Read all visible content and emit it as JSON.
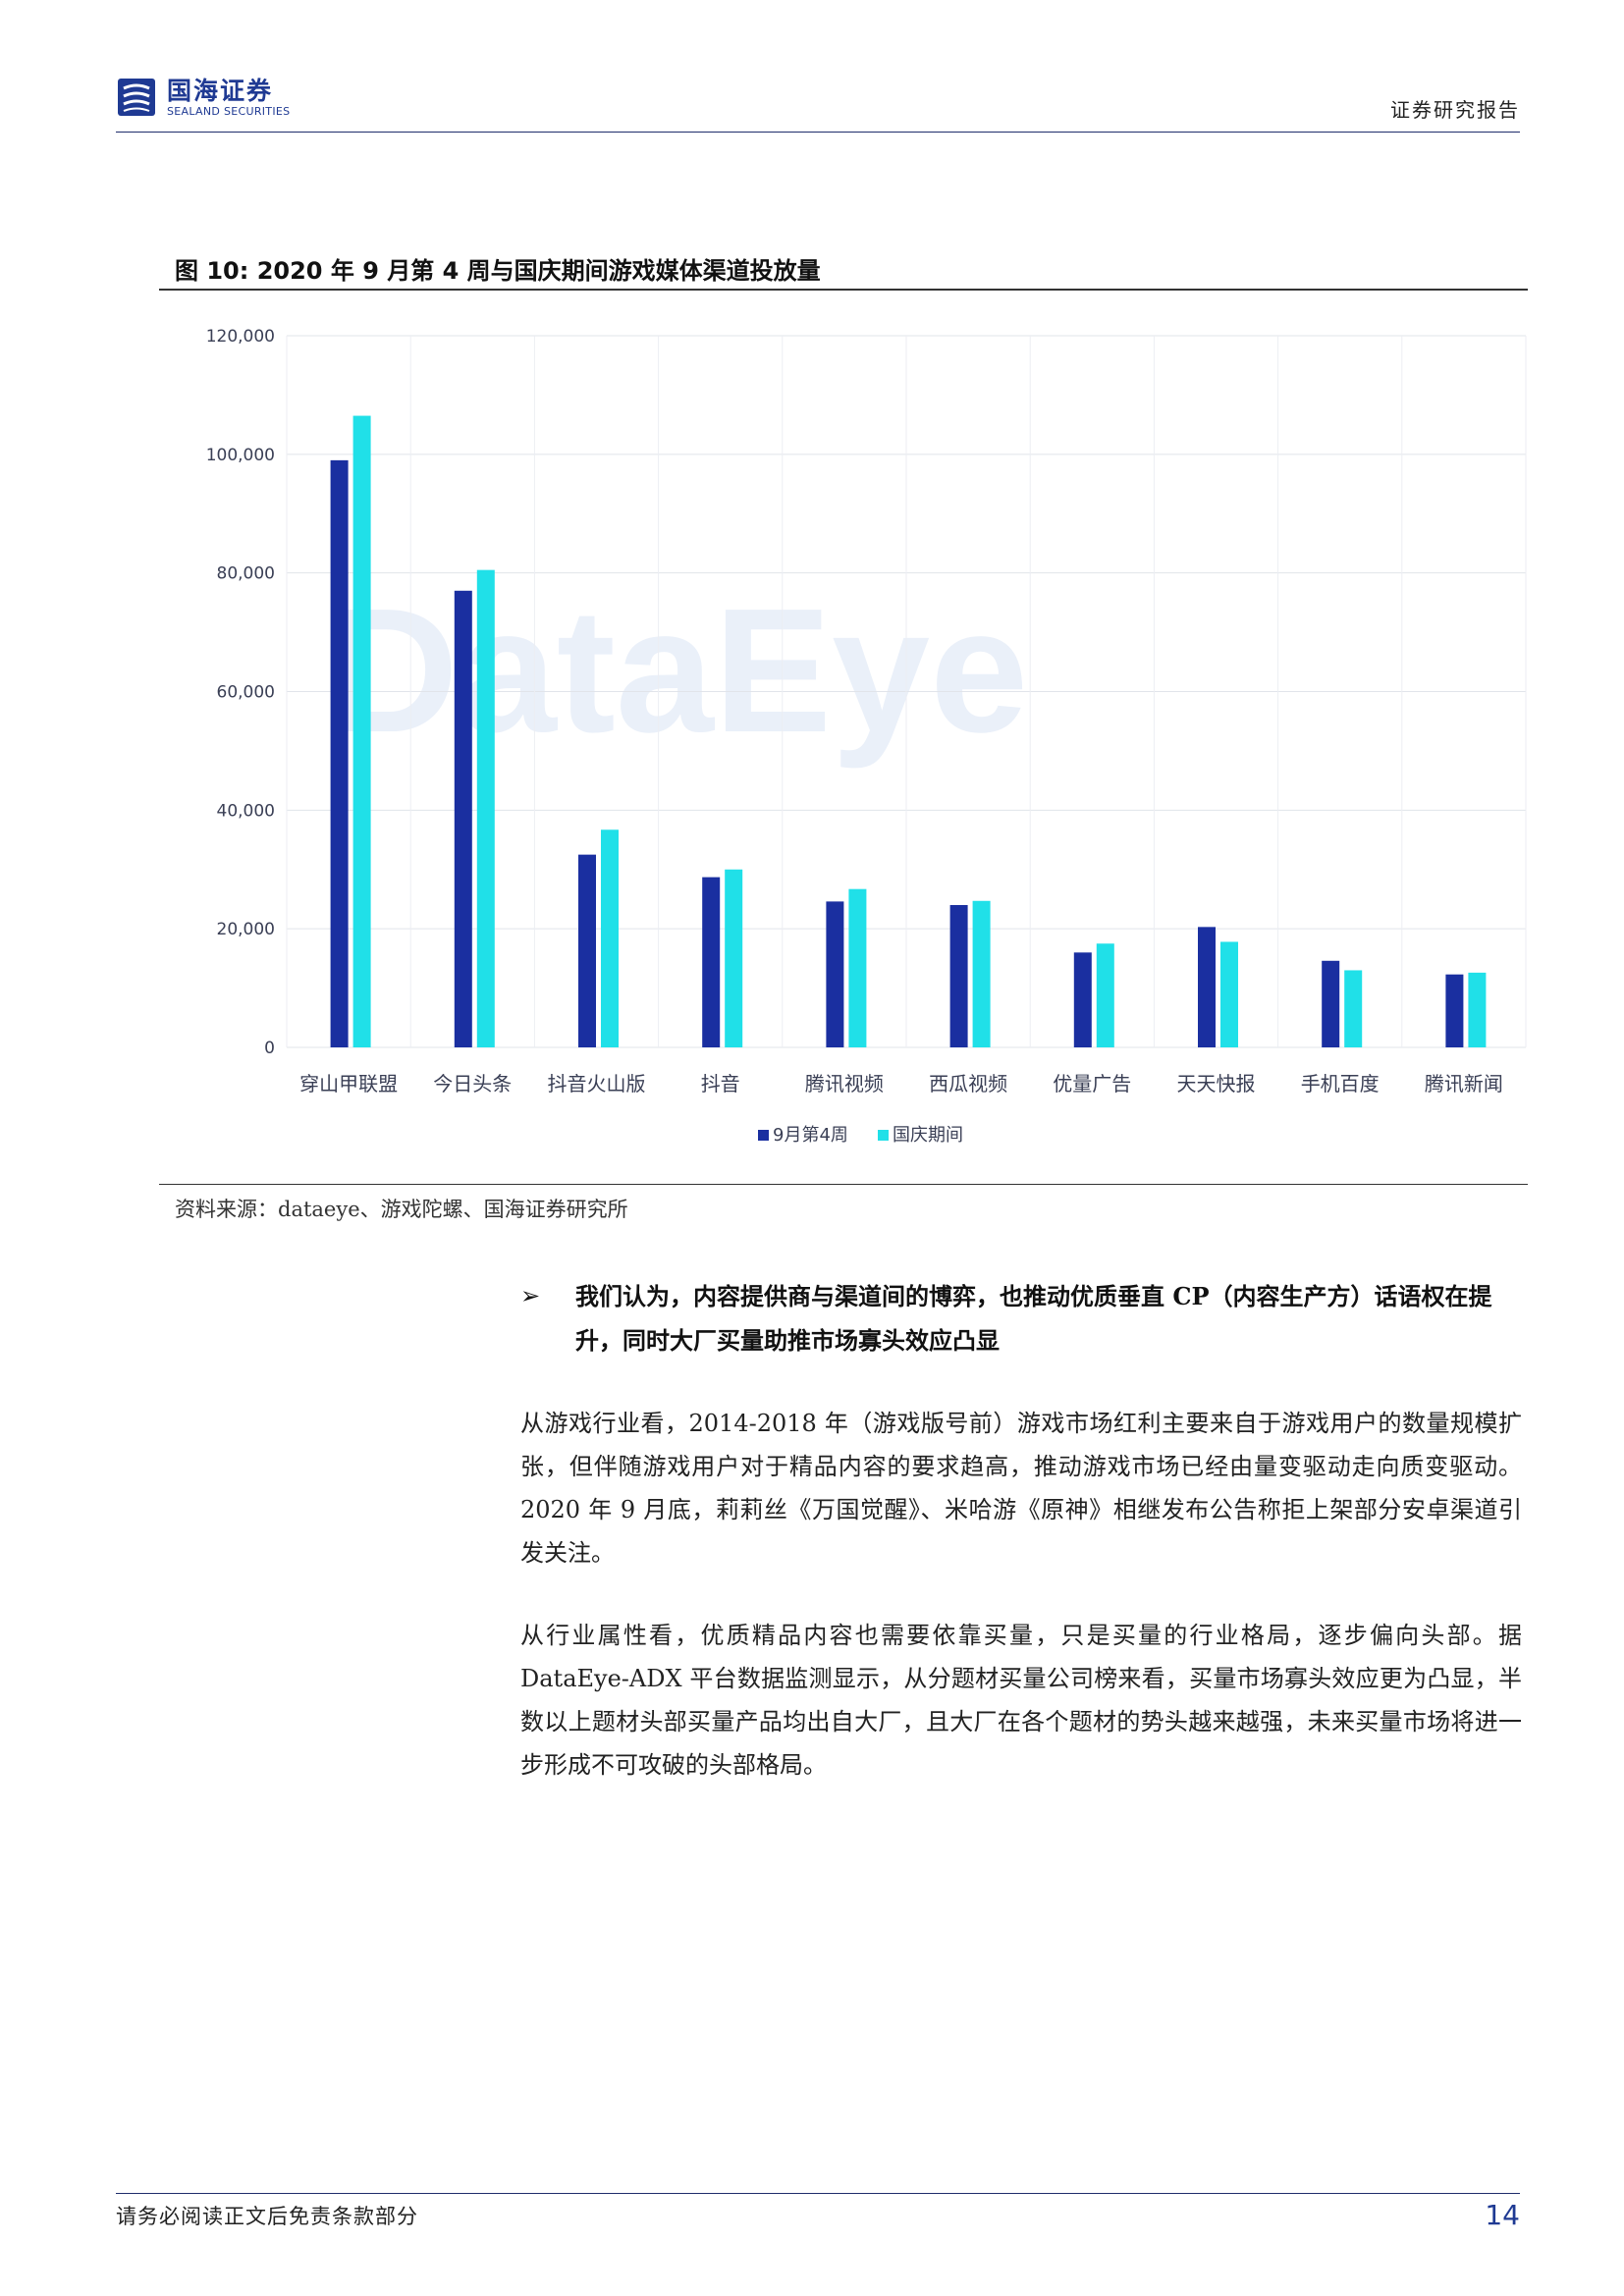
{
  "header": {
    "logo_cn": "国海证券",
    "logo_en": "SEALAND SECURITIES",
    "right_label": "证券研究报告"
  },
  "figure": {
    "title": "图 10:  2020 年 9 月第 4 周与国庆期间游戏媒体渠道投放量",
    "source": "资料来源：dataeye、游戏陀螺、国海证券研究所",
    "watermark": "DataEye"
  },
  "chart_data": {
    "type": "bar",
    "categories": [
      "穿山甲联盟",
      "今日头条",
      "抖音火山版",
      "抖音",
      "腾讯视频",
      "西瓜视频",
      "优量广告",
      "天天快报",
      "手机百度",
      "腾讯新闻"
    ],
    "series": [
      {
        "name": "9月第4周",
        "values": [
          99000,
          77000,
          32500,
          28700,
          24600,
          24000,
          16000,
          20300,
          14600,
          12300
        ],
        "color": "#1a2fa0"
      },
      {
        "name": "国庆期间",
        "values": [
          106500,
          80500,
          36700,
          30000,
          26700,
          24700,
          17500,
          17800,
          13000,
          12600
        ],
        "color": "#20e0e8"
      }
    ],
    "y_ticks": [
      "0",
      "20,000",
      "40,000",
      "60,000",
      "80,000",
      "100,000",
      "120,000"
    ],
    "ylim": [
      0,
      120000
    ],
    "grid": true,
    "legend_position": "bottom"
  },
  "bullet": {
    "mark": "➢",
    "text": "我们认为，内容提供商与渠道间的博弈，也推动优质垂直 CP（内容生产方）话语权在提升，同时大厂买量助推市场寡头效应凸显"
  },
  "paragraphs": [
    "从游戏行业看，2014-2018 年（游戏版号前）游戏市场红利主要来自于游戏用户的数量规模扩张，但伴随游戏用户对于精品内容的要求趋高，推动游戏市场已经由量变驱动走向质变驱动。2020 年 9 月底，莉莉丝《万国觉醒》、米哈游《原神》相继发布公告称拒上架部分安卓渠道引发关注。",
    "从行业属性看，优质精品内容也需要依靠买量，只是买量的行业格局，逐步偏向头部。据 DataEye-ADX 平台数据监测显示，从分题材买量公司榜来看，买量市场寡头效应更为凸显，半数以上题材头部买量产品均出自大厂，且大厂在各个题材的势头越来越强，未来买量市场将进一步形成不可攻破的头部格局。"
  ],
  "footer": {
    "disclaimer": "请务必阅读正文后免责条款部分",
    "page_number": "14"
  }
}
